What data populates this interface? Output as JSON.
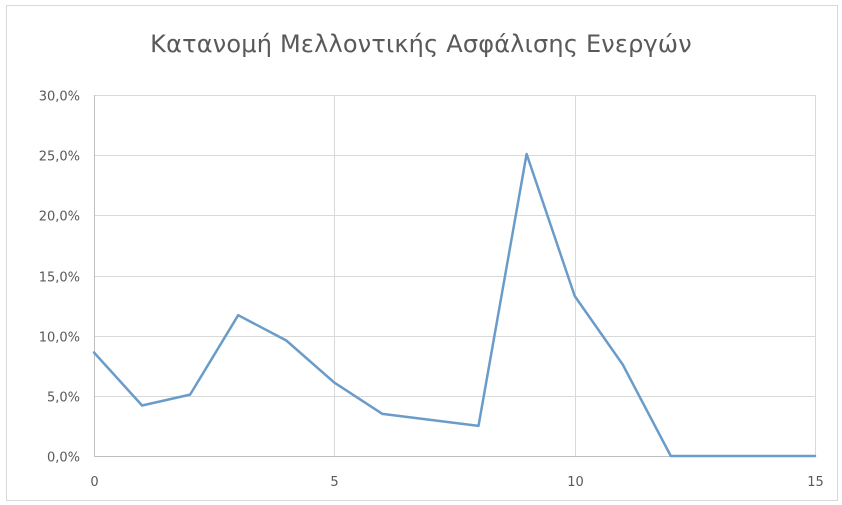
{
  "chart_data": {
    "type": "line",
    "title": "Κατανομή Μελλοντικής Ασφάλισης Ενεργών",
    "xlabel": "",
    "ylabel": "",
    "x": [
      0,
      1,
      2,
      3,
      4,
      5,
      6,
      7,
      8,
      9,
      10,
      11,
      12,
      13,
      14,
      15
    ],
    "series": [
      {
        "values": [
          8.6,
          4.2,
          5.1,
          11.7,
          9.6,
          6.1,
          3.5,
          3.0,
          2.5,
          25.1,
          13.3,
          7.6,
          0.0,
          0.0,
          0.0,
          0.0
        ]
      }
    ],
    "xlim": [
      0,
      15
    ],
    "ylim": [
      0,
      30
    ],
    "x_ticks": [
      "0",
      "5",
      "10",
      "15"
    ],
    "y_ticks": [
      "0,0%",
      "5,0%",
      "10,0%",
      "15,0%",
      "20,0%",
      "25,0%",
      "30,0%"
    ],
    "grid": true,
    "legend": "none",
    "line_color": "#6a9cc9",
    "grid_color": "#d9d9d9",
    "axis_color": "#bfbfbf"
  }
}
